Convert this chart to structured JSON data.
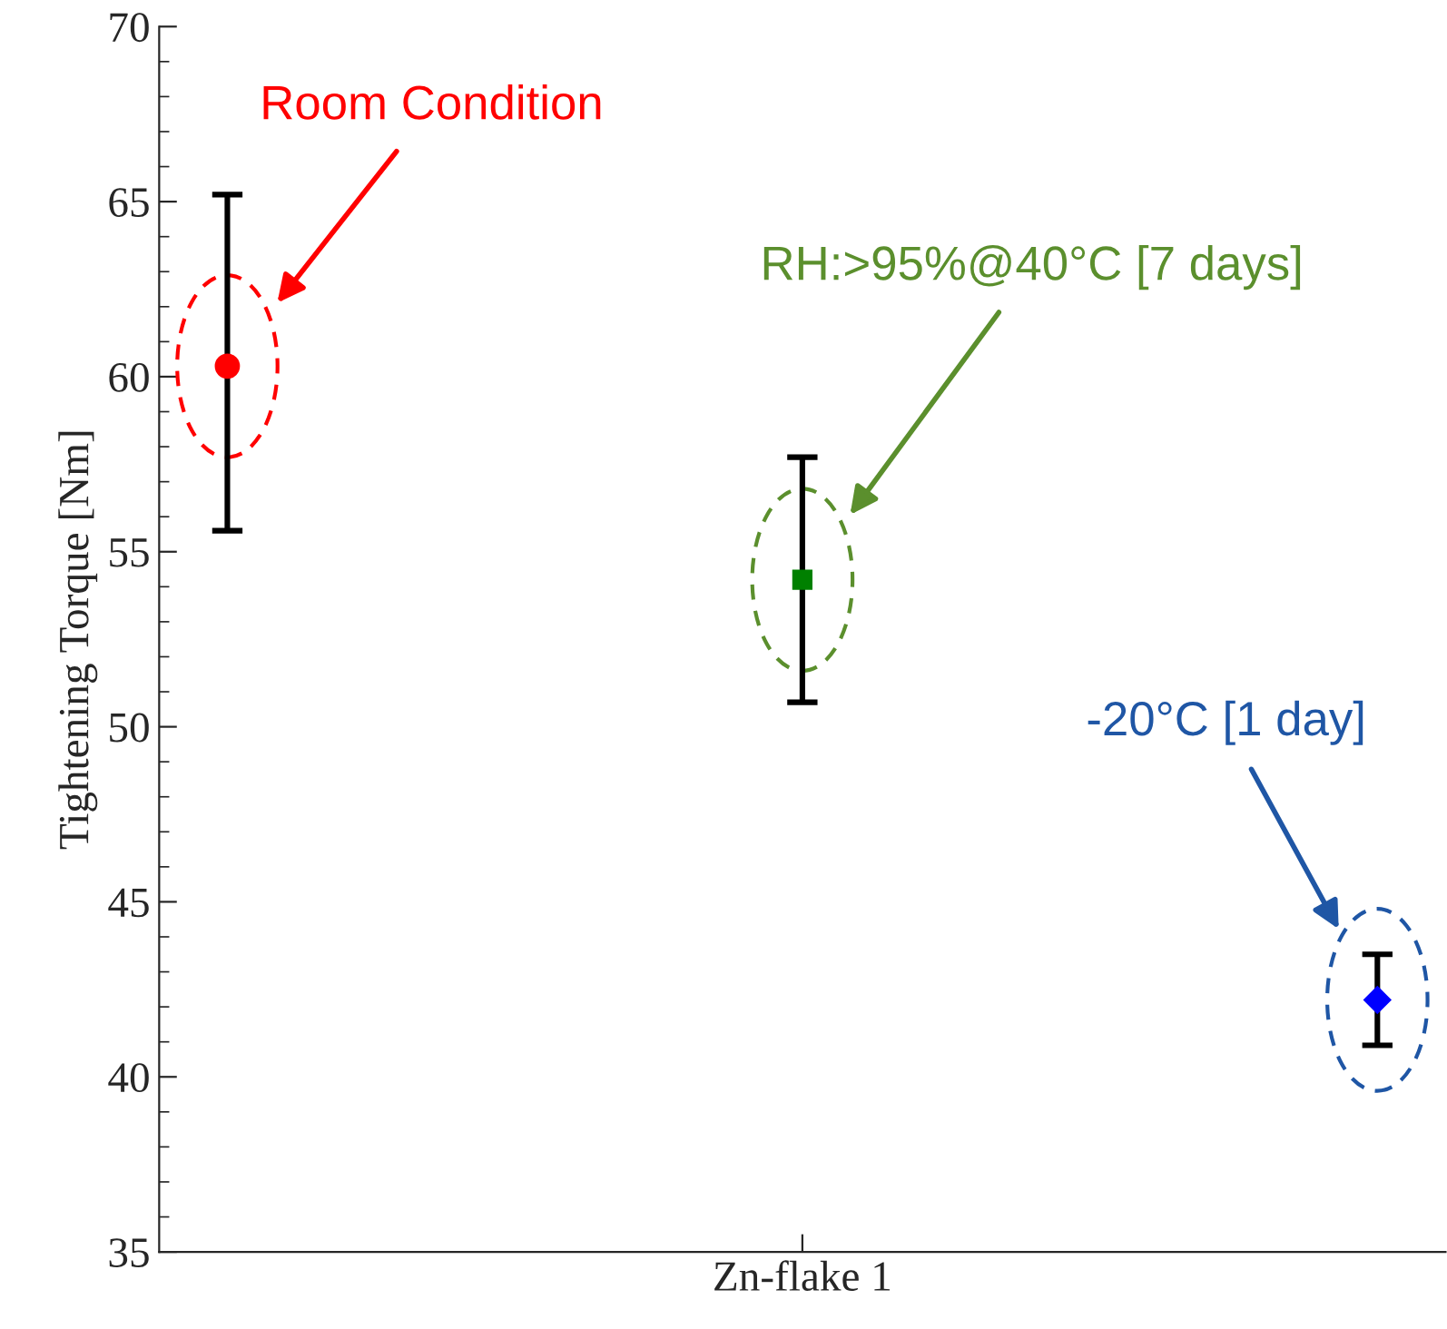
{
  "chart_data": {
    "type": "scatter",
    "ylabel": "Tightening Torque [Nm]",
    "categories": [
      "Zn-flake 1"
    ],
    "ylim": [
      35,
      70
    ],
    "yticks": [
      35,
      40,
      45,
      50,
      55,
      60,
      65,
      70
    ],
    "grid": false,
    "series": [
      {
        "color": "#ff0000",
        "marker": "circle",
        "values": [
          60.3
        ],
        "errors": [
          [
            55.6,
            65.2
          ]
        ]
      },
      {
        "color": "#008000",
        "marker": "square",
        "values": [
          54.2
        ],
        "errors": [
          [
            50.7,
            57.7
          ]
        ]
      },
      {
        "color": "#0000ff",
        "marker": "diamond",
        "values": [
          42.2
        ],
        "errors": [
          [
            40.9,
            43.5
          ]
        ]
      }
    ],
    "annotations": [
      "Room Condition",
      "RH:>95%@40°C [7 days]",
      "-20°C [1 day]"
    ]
  }
}
